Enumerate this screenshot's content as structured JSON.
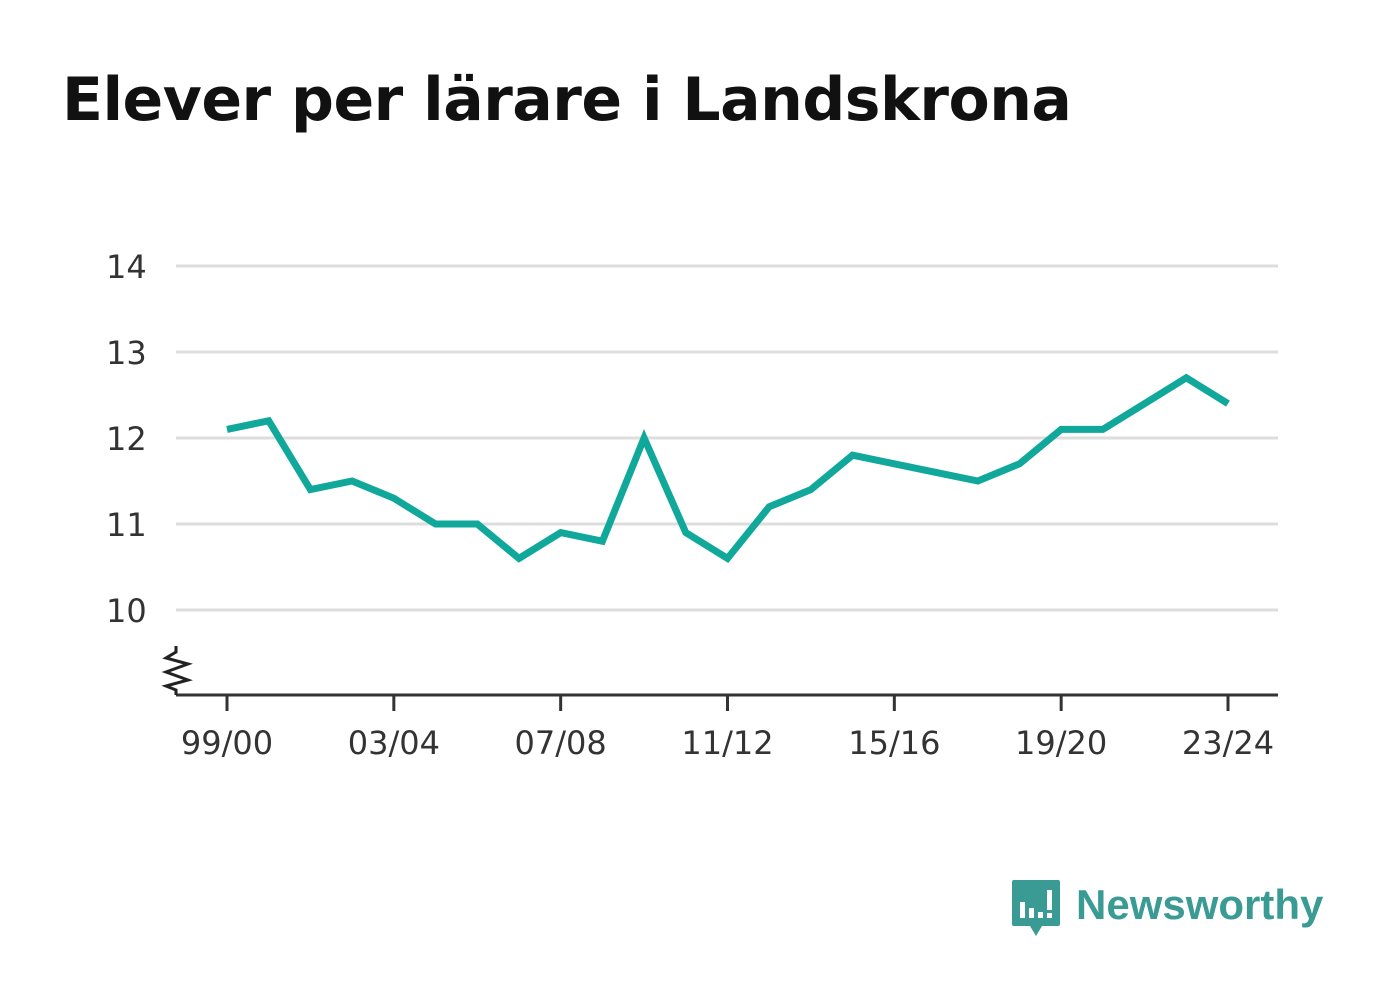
{
  "title": "Elever per lärare i Landskrona",
  "brand": {
    "name": "Newsworthy",
    "icon": "newsworthy-logo-icon",
    "color": "#3a9b94"
  },
  "chart_data": {
    "type": "line",
    "title": "Elever per lärare i Landskrona",
    "xlabel": "",
    "ylabel": "",
    "x": [
      "99/00",
      "00/01",
      "01/02",
      "02/03",
      "03/04",
      "04/05",
      "05/06",
      "06/07",
      "07/08",
      "08/09",
      "09/10",
      "10/11",
      "11/12",
      "12/13",
      "13/14",
      "14/15",
      "15/16",
      "16/17",
      "17/18",
      "18/19",
      "19/20",
      "20/21",
      "21/22",
      "22/23",
      "23/24"
    ],
    "x_tick_labels": [
      "99/00",
      "03/04",
      "07/08",
      "11/12",
      "15/16",
      "19/20",
      "23/24"
    ],
    "y_tick_labels": [
      "10",
      "11",
      "12",
      "13",
      "14"
    ],
    "ylim": [
      9,
      14
    ],
    "y_axis_break": true,
    "grid": true,
    "series": [
      {
        "values": [
          12.1,
          12.2,
          11.4,
          11.5,
          11.3,
          11.0,
          11.0,
          10.6,
          10.9,
          10.8,
          12.0,
          10.9,
          10.6,
          11.2,
          11.4,
          11.8,
          11.7,
          11.6,
          11.5,
          11.7,
          12.1,
          12.1,
          12.4,
          12.7,
          12.4
        ],
        "color": "#0fa89a"
      }
    ]
  }
}
